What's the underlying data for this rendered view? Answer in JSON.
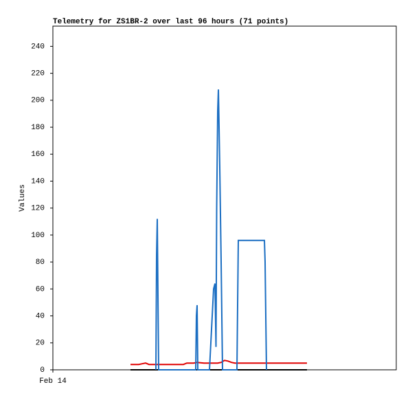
{
  "chart_data": {
    "type": "line",
    "title": "Telemetry for ZS1BR-2 over last 96 hours (71 points)",
    "y_label": "Values",
    "xlim": [
      0,
      100
    ],
    "xticks": [
      {
        "value": 0,
        "label": "Feb 14"
      }
    ],
    "ylim": [
      0,
      255
    ],
    "yticks": [
      0,
      20,
      40,
      60,
      80,
      100,
      120,
      140,
      160,
      180,
      200,
      220,
      240
    ],
    "series": [
      {
        "color": "#000000",
        "x": [
          22.6,
          74
        ],
        "values": [
          0,
          0
        ]
      },
      {
        "color": "#e00000",
        "x": [
          22.6,
          25,
          26,
          27,
          28,
          29,
          30,
          31,
          32,
          38,
          39,
          41,
          42,
          44,
          45,
          47,
          48,
          49,
          50,
          51,
          52,
          53,
          54,
          60,
          66,
          74
        ],
        "values": [
          4,
          4,
          4.5,
          5,
          4,
          4,
          4,
          4,
          4,
          4,
          5,
          5,
          5.5,
          5,
          5,
          5,
          5,
          5.5,
          7,
          6.5,
          5.5,
          5,
          5,
          5,
          5,
          5
        ]
      },
      {
        "color": "#1b6ec2",
        "x": [
          30,
          30.2,
          30.4,
          30.6,
          30.8,
          41.6,
          41.8,
          42,
          42.2,
          45.6,
          46.4,
          46.8,
          47.2,
          47.5,
          47.7,
          48,
          48.2,
          48.4,
          48.6,
          49,
          49.4,
          53.6,
          53.8,
          54,
          61.6,
          61.8,
          62.2
        ],
        "values": [
          0,
          85,
          112,
          55,
          0,
          0,
          40,
          48,
          0,
          0,
          40,
          60,
          64,
          17,
          120,
          192,
          208,
          180,
          150,
          80,
          0,
          0,
          48,
          96,
          96,
          80,
          0
        ]
      }
    ]
  }
}
